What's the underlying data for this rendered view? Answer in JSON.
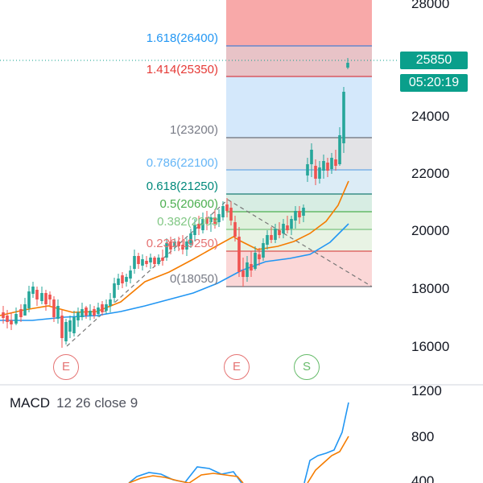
{
  "price_axis": {
    "ticks": [
      "28000",
      "24000",
      "22000",
      "20000",
      "18000",
      "16000"
    ]
  },
  "macd_axis": {
    "ticks": [
      "1200",
      "800",
      "400"
    ]
  },
  "fib_levels": [
    {
      "label": "1.618(26400)",
      "color": "#2196f3"
    },
    {
      "label": "1.414(25350)",
      "color": "#e53935"
    },
    {
      "label": "1(23200)",
      "color": "#787b86"
    },
    {
      "label": "0.786(22100)",
      "color": "#64b5f6"
    },
    {
      "label": "0.618(21250)",
      "color": "#00897b"
    },
    {
      "label": "0.5(20600)",
      "color": "#4caf50"
    },
    {
      "label": "0.382(2003",
      "color": "#81c784"
    },
    {
      "label": "0.236(19250)",
      "color": "#e57373"
    },
    {
      "label": "0(18050)",
      "color": "#787b86"
    }
  ],
  "current_price": {
    "value": "25850",
    "countdown": "05:20:19",
    "color": "#0a9f8b"
  },
  "events": [
    {
      "label": "E",
      "color": "#e57373"
    },
    {
      "label": "E",
      "color": "#e57373"
    },
    {
      "label": "S",
      "color": "#66bb6a"
    }
  ],
  "macd": {
    "title": "MACD",
    "params": "12 26 close 9"
  },
  "colors": {
    "up": "#26a69a",
    "down": "#ef5350",
    "ma_fast": "#f57c00",
    "ma_slow": "#2196f3"
  }
}
